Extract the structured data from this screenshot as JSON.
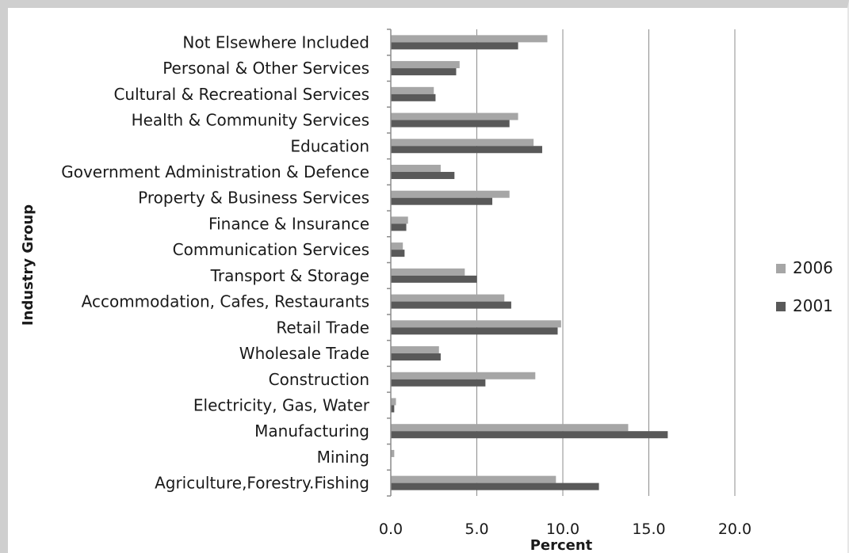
{
  "chart_data": {
    "type": "bar",
    "orientation": "horizontal",
    "title": "",
    "xlabel": "Percent",
    "ylabel": "Industry Group",
    "xlim": [
      0,
      20
    ],
    "xticks": [
      "0.0",
      "5.0",
      "10.0",
      "15.0",
      "20.0"
    ],
    "grid": "vertical",
    "legend": "right",
    "categories": [
      "Agriculture,Forestry.Fishing",
      "Mining",
      "Manufacturing",
      "Electricity, Gas, Water",
      "Construction",
      "Wholesale Trade",
      "Retail Trade",
      "Accommodation, Cafes, Restaurants",
      "Transport & Storage",
      "Communication Services",
      "Finance & Insurance",
      "Property & Business Services",
      "Government Administration & Defence",
      "Education",
      "Health & Community Services",
      "Cultural & Recreational Services",
      "Personal & Other Services",
      "Not Elsewhere Included"
    ],
    "series": [
      {
        "name": "2006",
        "color": "#a6a6a6",
        "values": [
          9.6,
          0.2,
          13.8,
          0.3,
          8.4,
          2.8,
          9.9,
          6.6,
          4.3,
          0.7,
          1.0,
          6.9,
          2.9,
          8.3,
          7.4,
          2.5,
          4.0,
          9.1
        ]
      },
      {
        "name": "2001",
        "color": "#595959",
        "values": [
          12.1,
          0.0,
          16.1,
          0.2,
          5.5,
          2.9,
          9.7,
          7.0,
          5.0,
          0.8,
          0.9,
          5.9,
          3.7,
          8.8,
          6.9,
          2.6,
          3.8,
          7.4
        ]
      }
    ]
  }
}
